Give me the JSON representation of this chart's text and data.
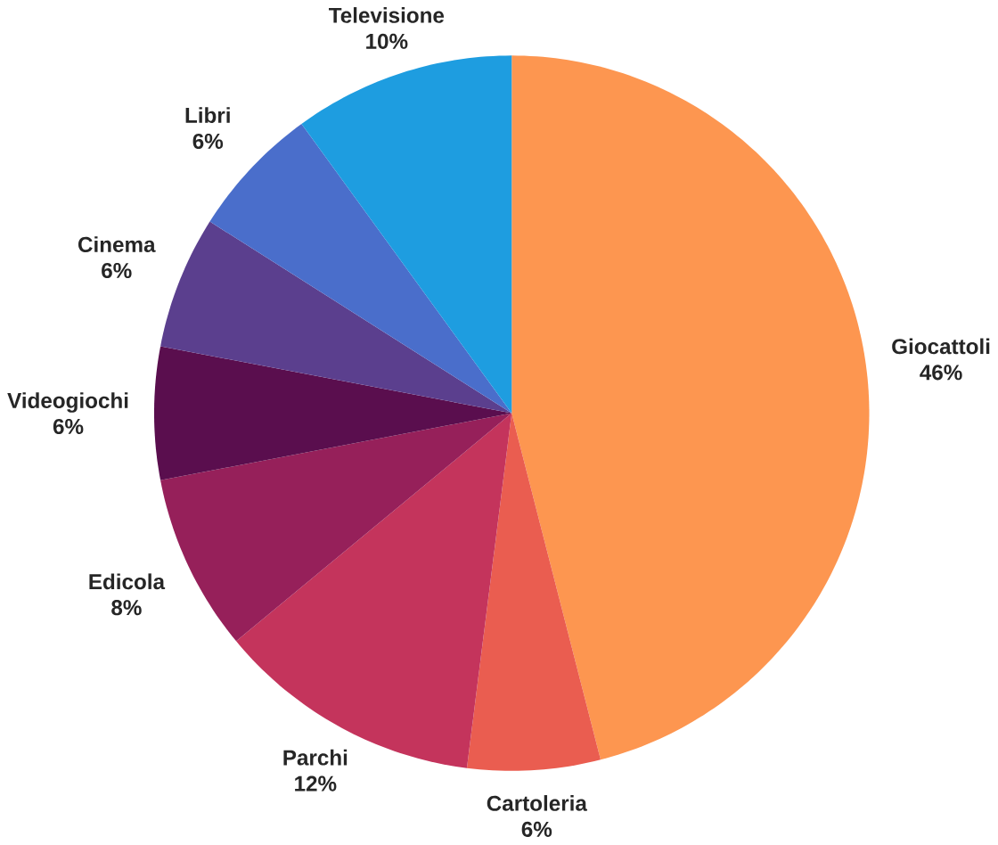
{
  "chart_data": {
    "type": "pie",
    "categories": [
      "Giocattoli",
      "Cartoleria",
      "Parchi",
      "Edicola",
      "Videogiochi",
      "Cinema",
      "Libri",
      "Televisione"
    ],
    "values": [
      46,
      6,
      12,
      8,
      6,
      6,
      6,
      10
    ],
    "value_labels": [
      "46%",
      "6%",
      "12%",
      "8%",
      "6%",
      "6%",
      "6%",
      "10%"
    ],
    "colors": [
      "#fd9650",
      "#ea5d50",
      "#c4345c",
      "#96205a",
      "#5a0e4e",
      "#5b3f8e",
      "#4a6ecb",
      "#1e9de0"
    ]
  }
}
